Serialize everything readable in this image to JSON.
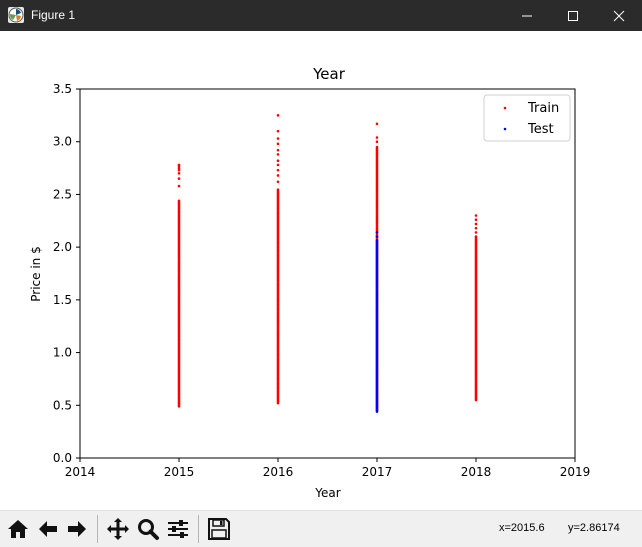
{
  "window": {
    "title": "Figure 1",
    "icon": "matplotlib-logo-icon",
    "controls": [
      "minimize-icon",
      "maximize-icon",
      "close-icon"
    ]
  },
  "toolbar": {
    "buttons": [
      "home-icon",
      "back-arrow-icon",
      "forward-arrow-icon",
      "pan-icon",
      "zoom-icon",
      "configure-subplots-icon",
      "save-icon"
    ]
  },
  "status": {
    "x_readout": "x=2015.6",
    "y_readout": "y=2.86174"
  },
  "chart_data": {
    "type": "scatter",
    "title": "Year",
    "xlabel": "Year",
    "ylabel": "Price in $",
    "xlim": [
      2014,
      2019
    ],
    "ylim": [
      0.0,
      3.5
    ],
    "xticks": [
      "2014",
      "2015",
      "2016",
      "2017",
      "2018",
      "2019"
    ],
    "yticks": [
      "0.0",
      "0.5",
      "1.0",
      "1.5",
      "2.0",
      "2.5",
      "3.0",
      "3.5"
    ],
    "legend_position": "top-right",
    "grid": false,
    "series": [
      {
        "name": "Train",
        "color": "#ff0000",
        "groups": [
          {
            "x": 2015,
            "ymin": 0.49,
            "ymax": 2.45,
            "outliers": [
              2.58,
              2.65,
              2.7,
              2.73,
              2.75,
              2.77,
              2.78
            ]
          },
          {
            "x": 2016,
            "ymin": 0.52,
            "ymax": 2.55,
            "outliers": [
              2.62,
              2.68,
              2.73,
              2.78,
              2.82,
              2.88,
              2.92,
              2.98,
              3.03,
              3.1,
              3.25
            ]
          },
          {
            "x": 2017,
            "ymin": 0.45,
            "ymax": 2.95,
            "outliers": [
              3.0,
              3.04,
              3.17
            ]
          },
          {
            "x": 2018,
            "ymin": 0.55,
            "ymax": 2.1,
            "outliers": [
              2.14,
              2.18,
              2.22,
              2.26,
              2.3
            ]
          }
        ]
      },
      {
        "name": "Test",
        "color": "#0000ff",
        "groups": [
          {
            "x": 2017,
            "ymin": 0.44,
            "ymax": 2.07,
            "outliers": [
              2.1,
              2.14
            ]
          }
        ]
      }
    ]
  }
}
